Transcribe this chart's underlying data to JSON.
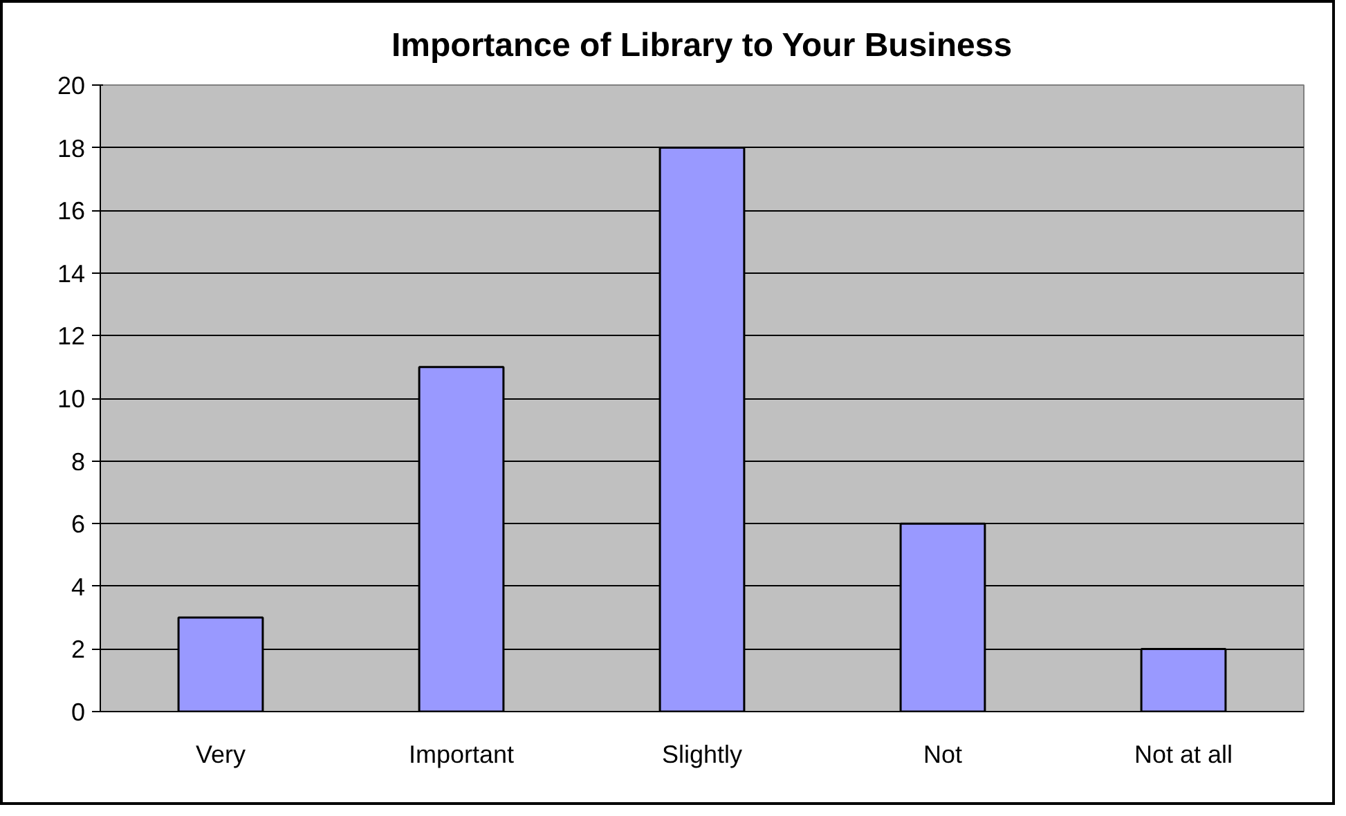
{
  "chart_data": {
    "type": "bar",
    "title": "Importance of Library to Your Business",
    "categories": [
      "Very",
      "Important",
      "Slightly",
      "Not",
      "Not at all"
    ],
    "values": [
      3,
      11,
      18,
      6,
      2
    ],
    "color": "#9999ff",
    "ylim": [
      0,
      20
    ],
    "yticks": [
      0,
      2,
      4,
      6,
      8,
      10,
      12,
      14,
      16,
      18,
      20
    ],
    "grid": "y"
  }
}
